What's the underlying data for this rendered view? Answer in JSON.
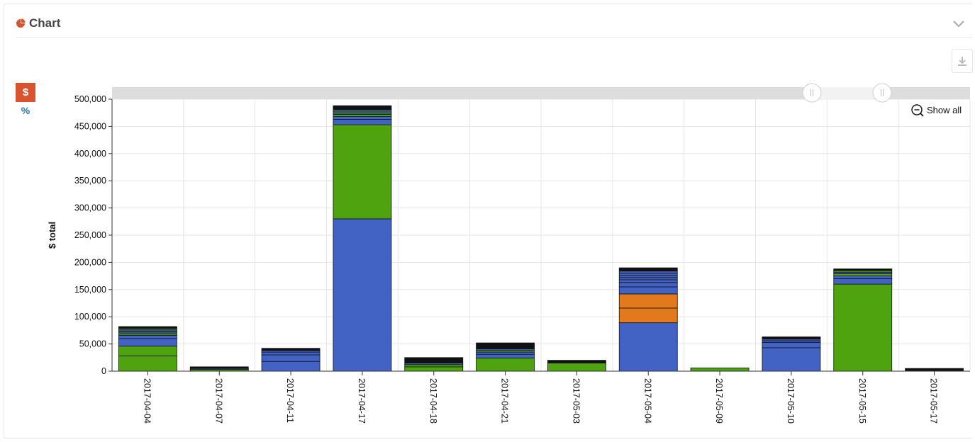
{
  "panel": {
    "title": "Chart",
    "icons": {
      "title": "pie-chart-icon",
      "collapse": "chevron-down-icon",
      "download": "download-icon"
    }
  },
  "mode_toggle": {
    "dollar_label": "$",
    "percent_label": "%"
  },
  "zoom": {
    "show_all_label": "Show all",
    "icon": "zoom-out-icon"
  },
  "colors": {
    "blue": "#4263c4",
    "green": "#4ea30e",
    "orange": "#e27a1d",
    "black": "#111111",
    "accent": "#d8532e"
  },
  "chart_data": {
    "type": "bar",
    "stacked": true,
    "ylabel": "$ total",
    "ylim": [
      0,
      500000
    ],
    "yticks": [
      0,
      50000,
      100000,
      150000,
      200000,
      250000,
      300000,
      350000,
      400000,
      450000,
      500000
    ],
    "ytick_labels": [
      "0",
      "50,000",
      "100,000",
      "150,000",
      "200,000",
      "250,000",
      "300,000",
      "350,000",
      "400,000",
      "450,000",
      "500,000"
    ],
    "grid": true,
    "categories": [
      "2017-04-04",
      "2017-04-07",
      "2017-04-11",
      "2017-04-17",
      "2017-04-18",
      "2017-04-21",
      "2017-05-03",
      "2017-05-04",
      "2017-05-09",
      "2017-05-10",
      "2017-05-15",
      "2017-05-17"
    ],
    "stacks": [
      [
        {
          "value": 28000,
          "color": "#4ea30e"
        },
        {
          "value": 18000,
          "color": "#4ea30e"
        },
        {
          "value": 14000,
          "color": "#4263c4"
        },
        {
          "value": 6000,
          "color": "#4263c4"
        },
        {
          "value": 3000,
          "color": "#4ea30e"
        },
        {
          "value": 3000,
          "color": "#4263c4"
        },
        {
          "value": 2000,
          "color": "#4ea30e"
        },
        {
          "value": 3000,
          "color": "#4263c4"
        },
        {
          "value": 2000,
          "color": "#4ea30e"
        },
        {
          "value": 3000,
          "color": "#111111"
        }
      ],
      [
        {
          "value": 3000,
          "color": "#4ea30e"
        },
        {
          "value": 2000,
          "color": "#4263c4"
        },
        {
          "value": 3000,
          "color": "#111111"
        }
      ],
      [
        {
          "value": 18000,
          "color": "#4263c4"
        },
        {
          "value": 12000,
          "color": "#4263c4"
        },
        {
          "value": 5000,
          "color": "#4263c4"
        },
        {
          "value": 3000,
          "color": "#4263c4"
        },
        {
          "value": 4000,
          "color": "#111111"
        }
      ],
      [
        {
          "value": 280000,
          "color": "#4263c4"
        },
        {
          "value": 173000,
          "color": "#4ea30e"
        },
        {
          "value": 10000,
          "color": "#4263c4"
        },
        {
          "value": 5000,
          "color": "#4263c4"
        },
        {
          "value": 4000,
          "color": "#4ea30e"
        },
        {
          "value": 3000,
          "color": "#4263c4"
        },
        {
          "value": 3000,
          "color": "#4ea30e"
        },
        {
          "value": 3000,
          "color": "#4263c4"
        },
        {
          "value": 7000,
          "color": "#111111"
        }
      ],
      [
        {
          "value": 8000,
          "color": "#4ea30e"
        },
        {
          "value": 4000,
          "color": "#4ea30e"
        },
        {
          "value": 3000,
          "color": "#4263c4"
        },
        {
          "value": 10000,
          "color": "#111111"
        }
      ],
      [
        {
          "value": 24000,
          "color": "#4ea30e"
        },
        {
          "value": 7000,
          "color": "#4263c4"
        },
        {
          "value": 4000,
          "color": "#4263c4"
        },
        {
          "value": 3000,
          "color": "#4ea30e"
        },
        {
          "value": 3000,
          "color": "#4263c4"
        },
        {
          "value": 11000,
          "color": "#111111"
        }
      ],
      [
        {
          "value": 15000,
          "color": "#4ea30e"
        },
        {
          "value": 5000,
          "color": "#111111"
        }
      ],
      [
        {
          "value": 89000,
          "color": "#4263c4"
        },
        {
          "value": 27000,
          "color": "#e27a1d"
        },
        {
          "value": 26000,
          "color": "#e27a1d"
        },
        {
          "value": 13000,
          "color": "#4263c4"
        },
        {
          "value": 8000,
          "color": "#4263c4"
        },
        {
          "value": 5000,
          "color": "#4263c4"
        },
        {
          "value": 4000,
          "color": "#4263c4"
        },
        {
          "value": 4000,
          "color": "#4263c4"
        },
        {
          "value": 4000,
          "color": "#4263c4"
        },
        {
          "value": 4000,
          "color": "#4263c4"
        },
        {
          "value": 6000,
          "color": "#111111"
        }
      ],
      [
        {
          "value": 6000,
          "color": "#4ea30e"
        }
      ],
      [
        {
          "value": 43000,
          "color": "#4263c4"
        },
        {
          "value": 10000,
          "color": "#4263c4"
        },
        {
          "value": 3000,
          "color": "#4263c4"
        },
        {
          "value": 3000,
          "color": "#4263c4"
        },
        {
          "value": 4000,
          "color": "#111111"
        }
      ],
      [
        {
          "value": 160000,
          "color": "#4ea30e"
        },
        {
          "value": 10000,
          "color": "#4263c4"
        },
        {
          "value": 5000,
          "color": "#4263c4"
        },
        {
          "value": 4000,
          "color": "#4ea30e"
        },
        {
          "value": 3000,
          "color": "#4263c4"
        },
        {
          "value": 3000,
          "color": "#4ea30e"
        },
        {
          "value": 3000,
          "color": "#111111"
        }
      ],
      [
        {
          "value": 5000,
          "color": "#111111"
        }
      ]
    ]
  }
}
